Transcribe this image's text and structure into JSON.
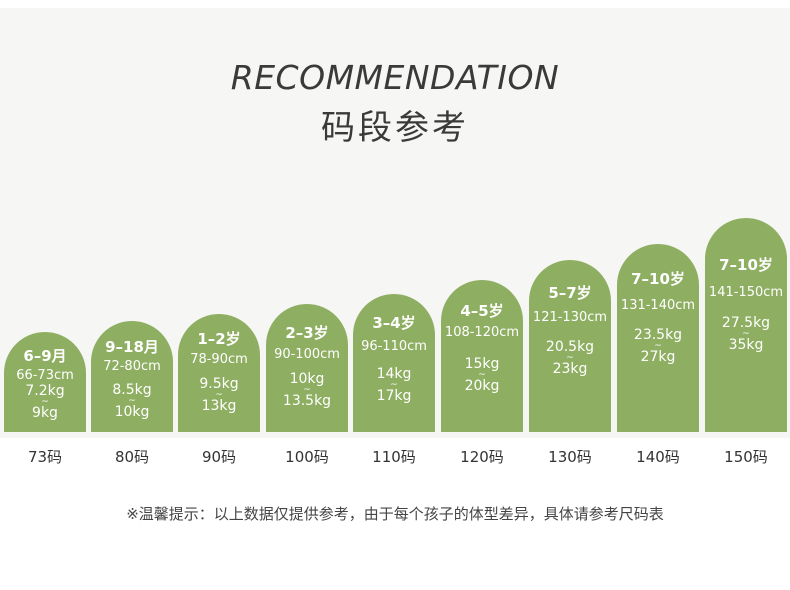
{
  "title_en": "RECOMMENDATION",
  "title_cn": "码段参考",
  "bars": [
    {
      "age": "6–9月",
      "height_range": "66-73cm",
      "weight_low": "7.2kg",
      "tilde": "~",
      "weight_high": "9kg",
      "size": "73码"
    },
    {
      "age": "9–18月",
      "height_range": "72-80cm",
      "weight_low": "8.5kg",
      "tilde": "~",
      "weight_high": "10kg",
      "size": "80码"
    },
    {
      "age": "1–2岁",
      "height_range": "78-90cm",
      "weight_low": "9.5kg",
      "tilde": "~",
      "weight_high": "13kg",
      "size": "90码"
    },
    {
      "age": "2–3岁",
      "height_range": "90-100cm",
      "weight_low": "10kg",
      "tilde": "~",
      "weight_high": "13.5kg",
      "size": "100码"
    },
    {
      "age": "3–4岁",
      "height_range": "96-110cm",
      "weight_low": "14kg",
      "tilde": "~",
      "weight_high": "17kg",
      "size": "110码"
    },
    {
      "age": "4–5岁",
      "height_range": "108-120cm",
      "weight_low": "15kg",
      "tilde": "~",
      "weight_high": "20kg",
      "size": "120码"
    },
    {
      "age": "5–7岁",
      "height_range": "121-130cm",
      "weight_low": "20.5kg",
      "tilde": "~",
      "weight_high": "23kg",
      "size": "130码"
    },
    {
      "age": "7–10岁",
      "height_range": "131-140cm",
      "weight_low": "23.5kg",
      "tilde": "~",
      "weight_high": "27kg",
      "size": "140码"
    },
    {
      "age": "7–10岁",
      "height_range": "141-150cm",
      "weight_low": "27.5kg",
      "tilde": "~",
      "weight_high": "35kg",
      "size": "150码"
    }
  ],
  "note": "※温馨提示：以上数据仅提供参考，由于每个孩子的体型差异，具体请参考尺码表",
  "colors": {
    "bar": "#8eae62",
    "panel": "#f6f6f4",
    "text": "#3a3a3a"
  }
}
